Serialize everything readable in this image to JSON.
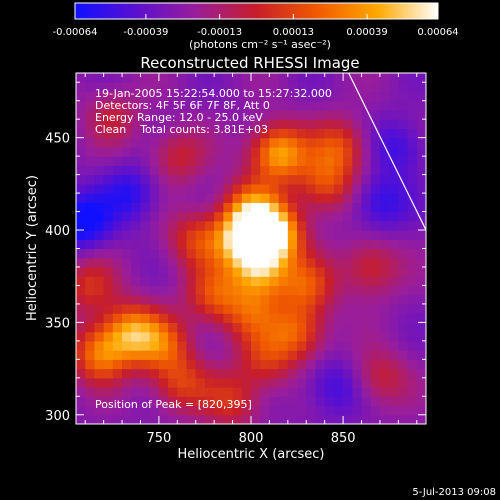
{
  "chart_data": {
    "type": "heatmap",
    "title": "Reconstructed RHESSI Image",
    "xlabel": "Heliocentric X (arcsec)",
    "ylabel": "Heliocentric Y (arcsec)",
    "xlim": [
      705,
      895
    ],
    "ylim": [
      295,
      485
    ],
    "x_ticks": [
      750,
      800,
      850
    ],
    "y_ticks": [
      300,
      350,
      400,
      450
    ],
    "colorbar": {
      "ticks": [
        "-0.00064",
        "-0.00039",
        "-0.00013",
        "0.00013",
        "0.00039",
        "0.00064"
      ],
      "tick_values": [
        -0.00064,
        -0.00039,
        -0.00013,
        0.00013,
        0.00039,
        0.00064
      ],
      "range": [
        -0.00064,
        0.00064
      ],
      "unit_label": "(photons cm⁻² s⁻¹ asec⁻²)",
      "colors": [
        "#1010ff",
        "#5a10d0",
        "#9a1e9a",
        "#c81e2a",
        "#f05a00",
        "#ffa800",
        "#ffffff"
      ]
    },
    "annotations": {
      "time": "19-Jan-2005 15:22:54.000 to 15:27:32.000",
      "detectors": "Detectors: 4F 5F 6F 7F 8F, Att 0",
      "energy": "Energy Range: 12.0 - 25.0 keV",
      "clean": "Clean    Total counts: 3.81E+03",
      "peak": "Position of Peak = [820,395]"
    },
    "peak_position": [
      820,
      395
    ],
    "sources": [
      {
        "x": 812,
        "y": 398,
        "strength": 0.95
      },
      {
        "x": 795,
        "y": 395,
        "strength": 0.75
      },
      {
        "x": 805,
        "y": 378,
        "strength": 0.65
      },
      {
        "x": 800,
        "y": 412,
        "strength": 0.55
      },
      {
        "x": 815,
        "y": 442,
        "strength": 0.75
      },
      {
        "x": 840,
        "y": 425,
        "strength": 0.45
      },
      {
        "x": 848,
        "y": 445,
        "strength": 0.45
      },
      {
        "x": 770,
        "y": 395,
        "strength": 0.4
      },
      {
        "x": 780,
        "y": 365,
        "strength": 0.45
      },
      {
        "x": 830,
        "y": 370,
        "strength": 0.45
      },
      {
        "x": 825,
        "y": 345,
        "strength": 0.5
      },
      {
        "x": 800,
        "y": 355,
        "strength": 0.4
      },
      {
        "x": 808,
        "y": 330,
        "strength": 0.35
      },
      {
        "x": 735,
        "y": 345,
        "strength": 0.65
      },
      {
        "x": 718,
        "y": 333,
        "strength": 0.6
      },
      {
        "x": 752,
        "y": 338,
        "strength": 0.45
      },
      {
        "x": 762,
        "y": 317,
        "strength": 0.4
      },
      {
        "x": 790,
        "y": 308,
        "strength": 0.35
      },
      {
        "x": 712,
        "y": 370,
        "strength": 0.35
      },
      {
        "x": 865,
        "y": 380,
        "strength": 0.35
      },
      {
        "x": 870,
        "y": 320,
        "strength": 0.3
      },
      {
        "x": 760,
        "y": 440,
        "strength": 0.3
      },
      {
        "x": 725,
        "y": 462,
        "strength": 0.25
      },
      {
        "x": 708,
        "y": 405,
        "strength": -0.45
      },
      {
        "x": 735,
        "y": 420,
        "strength": -0.3
      },
      {
        "x": 870,
        "y": 415,
        "strength": -0.3
      },
      {
        "x": 880,
        "y": 445,
        "strength": -0.25
      },
      {
        "x": 845,
        "y": 315,
        "strength": -0.25
      }
    ],
    "limb": [
      [
        853,
        485
      ],
      [
        895,
        400
      ]
    ]
  },
  "footer": {
    "date": "5-Jul-2013 09:08"
  }
}
